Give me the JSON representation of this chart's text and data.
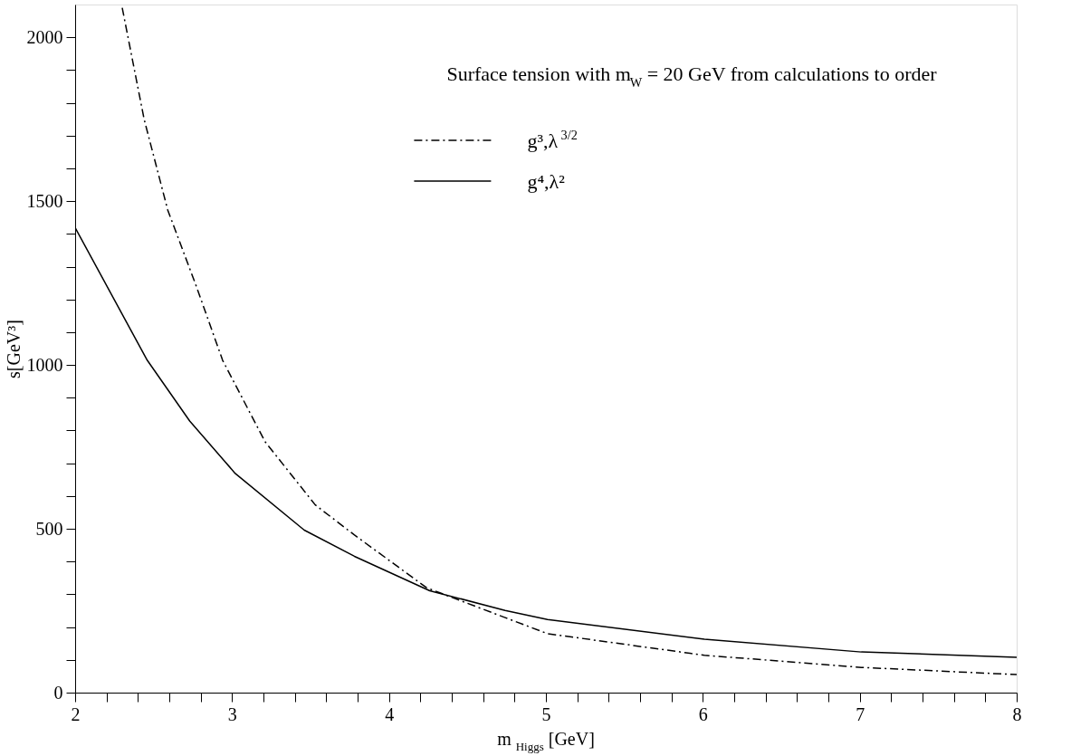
{
  "chart_data": {
    "type": "line",
    "title": "Surface tension with m$_{W}$ = 20 GeV from calculations to order",
    "xlabel": "m $_{Higgs}$ [GeV]",
    "ylabel": "s[GeV³]",
    "xlim": [
      2,
      8
    ],
    "ylim": [
      0,
      2100
    ],
    "xticks": [
      2,
      {
        "value": 2.2,
        "label": null
      },
      {
        "value": 2.4,
        "label": null
      },
      {
        "value": 2.6,
        "label": null
      },
      {
        "value": 2.8,
        "label": null
      },
      3,
      {
        "value": 3.2,
        "label": null
      },
      {
        "value": 3.4,
        "label": null
      },
      {
        "value": 3.6,
        "label": null
      },
      {
        "value": 3.8,
        "label": null
      },
      4,
      {
        "value": 4.2,
        "label": null
      },
      {
        "value": 4.4,
        "label": null
      },
      {
        "value": 4.6,
        "label": null
      },
      {
        "value": 4.8,
        "label": null
      },
      5,
      {
        "value": 5.2,
        "label": null
      },
      {
        "value": 5.4,
        "label": null
      },
      {
        "value": 5.6,
        "label": null
      },
      {
        "value": 5.8,
        "label": null
      },
      6,
      {
        "value": 6.2,
        "label": null
      },
      {
        "value": 6.4,
        "label": null
      },
      {
        "value": 6.6,
        "label": null
      },
      {
        "value": 6.8,
        "label": null
      },
      7,
      {
        "value": 7.2,
        "label": null
      },
      {
        "value": 7.4,
        "label": null
      },
      {
        "value": 7.6,
        "label": null
      },
      {
        "value": 7.8,
        "label": null
      },
      8
    ],
    "yticks": [
      0,
      {
        "value": 100,
        "label": null
      },
      {
        "value": 200,
        "label": null
      },
      {
        "value": 300,
        "label": null
      },
      {
        "value": 400,
        "label": null
      },
      500,
      {
        "value": 600,
        "label": null
      },
      {
        "value": 700,
        "label": null
      },
      {
        "value": 800,
        "label": null
      },
      {
        "value": 900,
        "label": null
      },
      1000,
      {
        "value": 1100,
        "label": null
      },
      {
        "value": 1200,
        "label": null
      },
      {
        "value": 1300,
        "label": null
      },
      {
        "value": 1400,
        "label": null
      },
      1500,
      {
        "value": 1600,
        "label": null
      },
      {
        "value": 1700,
        "label": null
      },
      {
        "value": 1800,
        "label": null
      },
      {
        "value": 1900,
        "label": null
      },
      2000
    ],
    "grid": false,
    "legend": "top",
    "marker": "none",
    "series": [
      {
        "name": "g³,λ$^{3/2}$",
        "color": "#000000",
        "line_style": "dashed",
        "x": [
          2.3,
          2.44,
          2.59,
          2.77,
          2.94,
          3.21,
          3.53,
          3.78,
          4.24,
          4.74,
          5.01,
          6.01,
          7.01,
          8.0
        ],
        "values": [
          2090,
          1749,
          1473,
          1243,
          1014,
          766,
          573,
          481,
          320,
          229,
          180,
          114,
          77,
          55
        ]
      },
      {
        "name": "g⁴,λ²",
        "color": "#000000",
        "line_style": "solid",
        "x": [
          2.0,
          2.46,
          2.73,
          3.02,
          3.46,
          3.78,
          4.26,
          4.74,
          5.01,
          6.01,
          7.01,
          8.0
        ],
        "values": [
          1419,
          1014,
          829,
          669,
          496,
          416,
          311,
          251,
          223,
          163,
          124,
          108
        ]
      }
    ]
  }
}
